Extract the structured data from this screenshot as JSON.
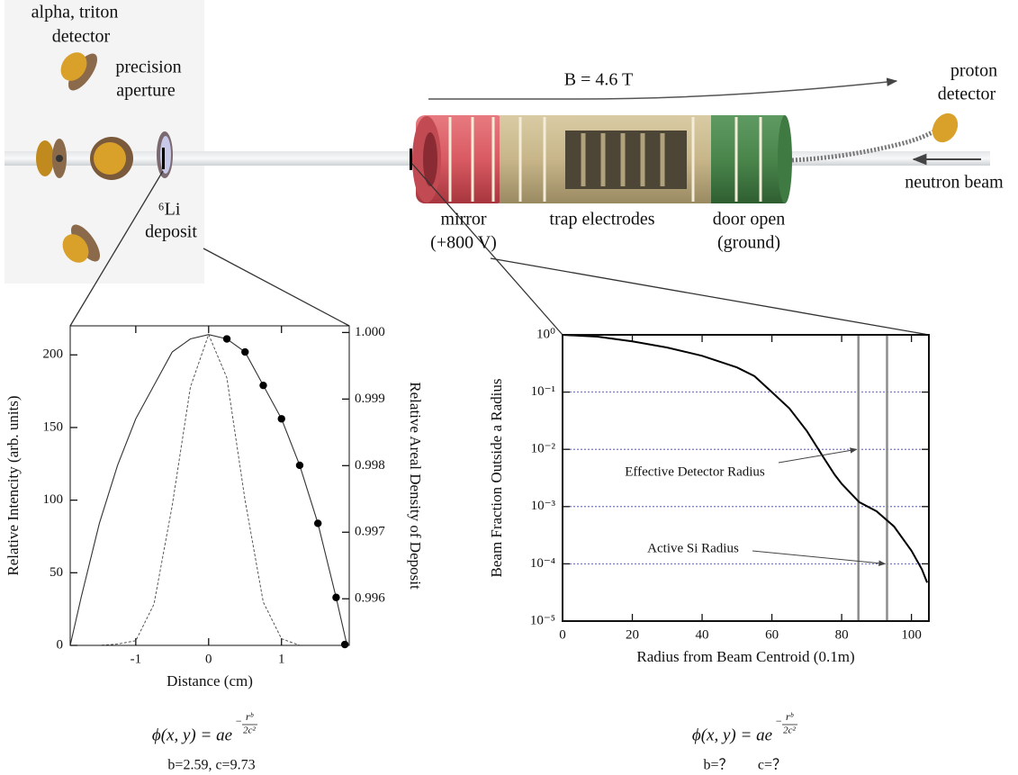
{
  "diagram": {
    "alpha_triton_detector": [
      "alpha, triton",
      "detector"
    ],
    "precision_aperture": [
      "precision",
      "aperture"
    ],
    "li_deposit": [
      "⁶Li",
      "deposit"
    ],
    "field": "B = 4.6 T",
    "proton_detector": [
      "proton",
      "detector"
    ],
    "neutron_beam": "neutron beam",
    "mirror": [
      "mirror",
      "(+800 V)"
    ],
    "trap_electrodes": "trap electrodes",
    "door": [
      "door open",
      "(ground)"
    ]
  },
  "formulas": [
    {
      "lhs": "ϕ(x, y) = ae",
      "exponent_sign": "−",
      "exponent_numerator": "rᵇ",
      "exponent_denominator": "2c²",
      "parameters": [
        "b=2.59, c=9.73"
      ]
    },
    {
      "lhs": "ϕ(x, y) = ae",
      "exponent_sign": "−",
      "exponent_numerator": "rᵇ",
      "exponent_denominator": "2c²",
      "parameters": [
        "b=？",
        "c=？"
      ]
    }
  ],
  "chart_data": [
    {
      "type": "line",
      "x_label": "Distance (cm)",
      "y_label": "Relative Intencity (arb. units)",
      "y2_label": "Relative Areal Density of Deposit",
      "xlim": [
        -1.9,
        1.93
      ],
      "xticks": [
        -1,
        0,
        1
      ],
      "ylim": [
        0,
        220
      ],
      "yticks": [
        0,
        50,
        100,
        150,
        200
      ],
      "y2lim": [
        0.9953,
        1.0001
      ],
      "y2ticks": [
        0.996,
        0.997,
        0.998,
        0.999,
        {
          "value": 1,
          "label": "1.000"
        }
      ],
      "series": [
        {
          "style": "solid",
          "color": "#333333",
          "x": [
            -1.9,
            -1.75,
            -1.5,
            -1.25,
            -1,
            -0.75,
            -0.5,
            -0.25,
            0,
            0.25,
            0.5,
            0.75,
            1,
            1.25,
            1.5,
            1.75,
            1.9
          ],
          "values": [
            0,
            33,
            84,
            124,
            156,
            179,
            202,
            211,
            214,
            211,
            202,
            179,
            156,
            124,
            84,
            33,
            0
          ]
        },
        {
          "style": "dashed",
          "axis": "y2",
          "color": "#555555",
          "x": [
            -1.9,
            -1.5,
            -1.25,
            -1,
            -0.75,
            -0.5,
            -0.25,
            0,
            0.25,
            0.5,
            0.75,
            1,
            1.25,
            1.5,
            1.9
          ],
          "values": [
            0.9953,
            0.9953,
            0.99532,
            0.99537,
            0.99592,
            0.9974,
            0.99918,
            0.99997,
            0.99932,
            0.99748,
            0.99595,
            0.9954,
            0.9953,
            0.9953,
            0.9953
          ]
        },
        {
          "style": "markers",
          "color": "#000000",
          "x": [
            0.25,
            0.5,
            0.75,
            1,
            1.25,
            1.5,
            1.75,
            1.87
          ],
          "values": [
            211,
            202,
            179,
            156,
            124,
            84,
            33,
            0.6
          ]
        }
      ]
    },
    {
      "type": "line",
      "x_label": "Radius from Beam Centroid (0.1m)",
      "y_label": "Beam Fraction Outside a Radius",
      "log_y": true,
      "xlim": [
        0,
        105
      ],
      "xticks": [
        0,
        20,
        40,
        60,
        80,
        100
      ],
      "ylim": [
        1e-05,
        1
      ],
      "yticks": [
        {
          "value": 1,
          "label": "10⁰"
        },
        {
          "value": 0.1,
          "label": "10⁻¹"
        },
        {
          "value": 0.01,
          "label": "10⁻²"
        },
        {
          "value": 0.001,
          "label": "10⁻³"
        },
        {
          "value": 0.0001,
          "label": "10⁻⁴"
        },
        {
          "value": 1e-05,
          "label": "10⁻⁵"
        }
      ],
      "grid": true,
      "grid_color": "#3b3bc8",
      "vlines": [
        84.8,
        93
      ],
      "vline_color": "#8c8c8c",
      "annotations": [
        {
          "text": "Effective Detector Radius",
          "xy": [
            84.8,
            0.01
          ]
        },
        {
          "text": "Active Si Radius",
          "xy": [
            93,
            0.0001
          ]
        }
      ],
      "series": [
        {
          "style": "solid",
          "color": "#000000",
          "x": [
            0,
            10,
            20,
            30,
            40,
            50,
            55,
            60,
            65,
            70,
            75,
            78,
            80,
            85,
            90,
            95,
            100,
            103,
            104.5
          ],
          "values": [
            1,
            0.93,
            0.77,
            0.6,
            0.43,
            0.27,
            0.19,
            0.1,
            0.052,
            0.021,
            0.0069,
            0.0036,
            0.0025,
            0.0012,
            0.00083,
            0.00045,
            0.00017,
            8e-05,
            4.7e-05
          ]
        }
      ]
    }
  ]
}
